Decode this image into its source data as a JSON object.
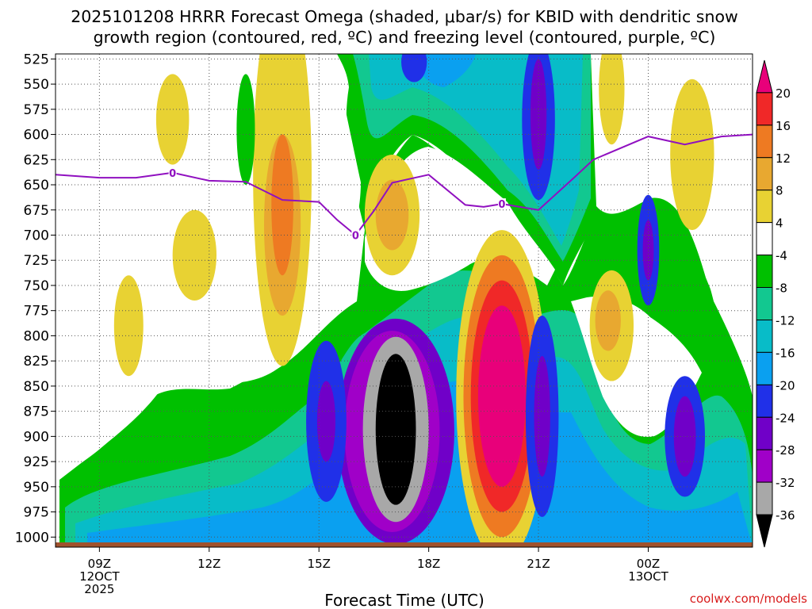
{
  "chart_data": {
    "type": "heatmap",
    "title_lines": [
      "2025101208 HRRR Forecast Omega (shaded, μbar/s) for KBID with dendritic snow",
      "growth region (contoured, red, ºC) and freezing level (contoured, purple, ºC)"
    ],
    "xlabel": "Forecast Time (UTC)",
    "credit": "coolwx.com/models",
    "x_range_hours": [
      7.8,
      26.85
    ],
    "y_range_hpa": [
      520,
      1010
    ],
    "pressure_levels": [
      525,
      550,
      575,
      600,
      625,
      650,
      675,
      700,
      725,
      750,
      775,
      800,
      825,
      850,
      875,
      900,
      925,
      950,
      975,
      1000
    ],
    "x_ticks": [
      {
        "hour": 9,
        "lines": [
          "09Z",
          "12OCT",
          "2025"
        ]
      },
      {
        "hour": 12,
        "lines": [
          "12Z"
        ]
      },
      {
        "hour": 15,
        "lines": [
          "15Z"
        ]
      },
      {
        "hour": 18,
        "lines": [
          "18Z"
        ]
      },
      {
        "hour": 21,
        "lines": [
          "21Z"
        ]
      },
      {
        "hour": 24,
        "lines": [
          "00Z",
          "13OCT"
        ]
      }
    ],
    "colorbar": {
      "labels": [
        "20",
        "16",
        "12",
        "8",
        "4",
        "-4",
        "-8",
        "-12",
        "-16",
        "-20",
        "-24",
        "-28",
        "-32",
        "-36"
      ],
      "colors": [
        "#e8007a",
        "#f02828",
        "#ee7a22",
        "#e8a830",
        "#e8d233",
        "#ffffff",
        "#00c000",
        "#12c890",
        "#08bcc8",
        "#0aa0f0",
        "#2030e8",
        "#7000c8",
        "#a000c8",
        "#a8a8a8",
        "#000000"
      ]
    },
    "omega_blobs": [
      {
        "value": -44,
        "hour": 17.1,
        "hpa": 893,
        "dh": 0.55,
        "dp": 75
      },
      {
        "value": -33,
        "hour": 17.1,
        "hpa": 893,
        "dh": 0.9,
        "dp": 92
      },
      {
        "value": -30,
        "hour": 17.0,
        "hpa": 895,
        "dh": 1.3,
        "dp": 100
      },
      {
        "value": -26,
        "hour": 17.1,
        "hpa": 895,
        "dh": 1.6,
        "dp": 112
      },
      {
        "value": 24,
        "hour": 20.0,
        "hpa": 860,
        "dh": 0.65,
        "dp": 90
      },
      {
        "value": 18,
        "hour": 20.0,
        "hpa": 860,
        "dh": 0.85,
        "dp": 115
      },
      {
        "value": 14,
        "hour": 20.0,
        "hpa": 860,
        "dh": 1.05,
        "dp": 140
      },
      {
        "value": 6,
        "hour": 20.0,
        "hpa": 860,
        "dh": 1.25,
        "dp": 165
      },
      {
        "value": 10,
        "hour": 14.0,
        "hpa": 690,
        "dh": 0.5,
        "dp": 90
      },
      {
        "value": 14,
        "hour": 14.0,
        "hpa": 670,
        "dh": 0.3,
        "dp": 70
      },
      {
        "value": 6,
        "hour": 14.0,
        "hpa": 640,
        "dh": 0.8,
        "dp": 190
      },
      {
        "value": 6,
        "hour": 17.0,
        "hpa": 680,
        "dh": 0.75,
        "dp": 60
      },
      {
        "value": 10,
        "hour": 17.0,
        "hpa": 680,
        "dh": 0.45,
        "dp": 35
      },
      {
        "value": 6,
        "hour": 11.0,
        "hpa": 585,
        "dh": 0.45,
        "dp": 45
      },
      {
        "value": 6,
        "hour": 9.8,
        "hpa": 790,
        "dh": 0.4,
        "dp": 50
      },
      {
        "value": 6,
        "hour": 11.6,
        "hpa": 720,
        "dh": 0.6,
        "dp": 45
      },
      {
        "value": -6,
        "hour": 13.0,
        "hpa": 595,
        "dh": 0.25,
        "dp": 55
      },
      {
        "value": 6,
        "hour": 23.0,
        "hpa": 790,
        "dh": 0.6,
        "dp": 55
      },
      {
        "value": 10,
        "hour": 22.9,
        "hpa": 785,
        "dh": 0.35,
        "dp": 30
      },
      {
        "value": 6,
        "hour": 23.0,
        "hpa": 555,
        "dh": 0.35,
        "dp": 55
      },
      {
        "value": 6,
        "hour": 25.2,
        "hpa": 620,
        "dh": 0.6,
        "dp": 75
      },
      {
        "value": -22,
        "hour": 21.0,
        "hpa": 585,
        "dh": 0.45,
        "dp": 80
      },
      {
        "value": -26,
        "hour": 21.0,
        "hpa": 580,
        "dh": 0.22,
        "dp": 55
      },
      {
        "value": -22,
        "hour": 21.1,
        "hpa": 880,
        "dh": 0.45,
        "dp": 100
      },
      {
        "value": -26,
        "hour": 21.1,
        "hpa": 880,
        "dh": 0.22,
        "dp": 60
      },
      {
        "value": -22,
        "hour": 24.0,
        "hpa": 715,
        "dh": 0.3,
        "dp": 55
      },
      {
        "value": -26,
        "hour": 24.0,
        "hpa": 715,
        "dh": 0.15,
        "dp": 30
      },
      {
        "value": -22,
        "hour": 25.0,
        "hpa": 900,
        "dh": 0.55,
        "dp": 60
      },
      {
        "value": -26,
        "hour": 25.0,
        "hpa": 900,
        "dh": 0.3,
        "dp": 40
      },
      {
        "value": -22,
        "hour": 15.2,
        "hpa": 885,
        "dh": 0.55,
        "dp": 80
      },
      {
        "value": -26,
        "hour": 15.2,
        "hpa": 885,
        "dh": 0.25,
        "dp": 40
      },
      {
        "value": -22,
        "hour": 17.6,
        "hpa": 528,
        "dh": 0.35,
        "dp": 20
      }
    ],
    "freezing_level": {
      "label": "0",
      "label_hours": [
        11.0,
        16.0,
        20.0
      ],
      "points": [
        [
          7.8,
          640
        ],
        [
          9.0,
          643
        ],
        [
          10.0,
          643
        ],
        [
          11.0,
          638
        ],
        [
          12.0,
          646
        ],
        [
          13.0,
          647
        ],
        [
          14.0,
          665
        ],
        [
          15.0,
          667
        ],
        [
          15.5,
          685
        ],
        [
          16.0,
          700
        ],
        [
          16.5,
          676
        ],
        [
          17.0,
          648
        ],
        [
          18.0,
          640
        ],
        [
          19.0,
          670
        ],
        [
          19.5,
          672
        ],
        [
          20.0,
          669
        ],
        [
          21.0,
          675
        ],
        [
          22.0,
          642
        ],
        [
          22.5,
          625
        ],
        [
          24.0,
          602
        ],
        [
          25.0,
          610
        ],
        [
          26.0,
          602
        ],
        [
          26.85,
          600
        ]
      ]
    }
  }
}
